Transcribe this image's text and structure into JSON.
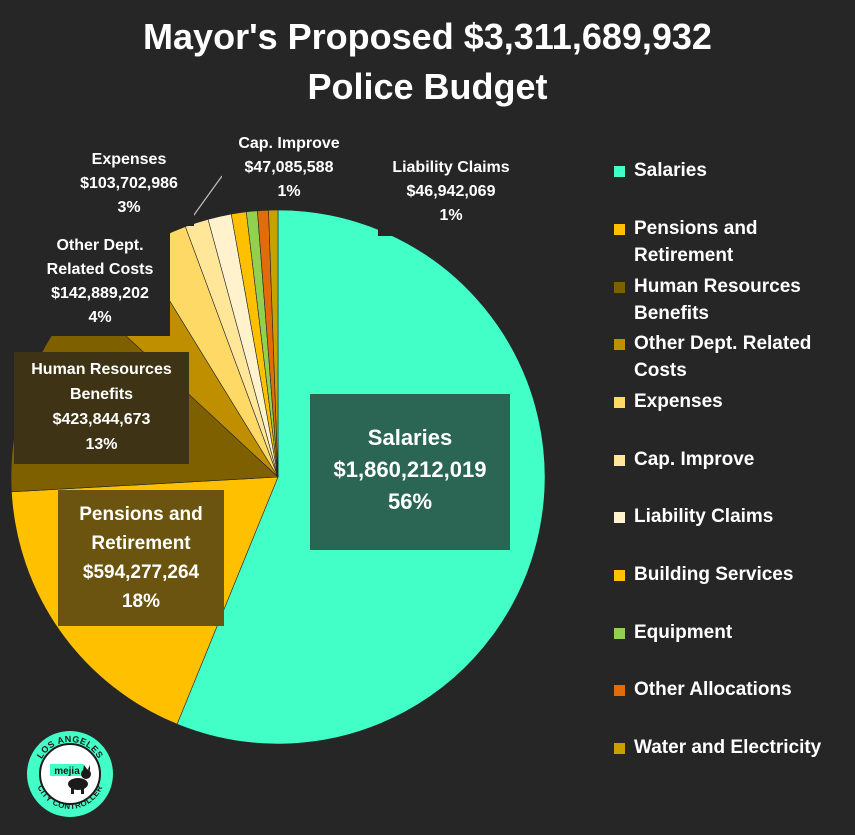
{
  "title": {
    "line1": "Mayor's Proposed $3,311,689,932",
    "line2": "Police Budget"
  },
  "chart_data": {
    "type": "pie",
    "total": 3311689932,
    "slices": [
      {
        "name": "Salaries",
        "value": 1860212019,
        "percent": "56%",
        "color": "#42FFC8"
      },
      {
        "name": "Pensions and Retirement",
        "value": 594277264,
        "percent": "18%",
        "color": "#FFC000"
      },
      {
        "name": "Human Resources Benefits",
        "value": 423844673,
        "percent": "13%",
        "color": "#7F6000"
      },
      {
        "name": "Other Dept. Related Costs",
        "value": 142889202,
        "percent": "4%",
        "color": "#BF8F00"
      },
      {
        "name": "Expenses",
        "value": 103702986,
        "percent": "3%",
        "color": "#FFD966"
      },
      {
        "name": "Cap. Improve",
        "value": 47085588,
        "percent": "1%",
        "color": "#FFE699"
      },
      {
        "name": "Liability Claims",
        "value": 46942069,
        "percent": "1%",
        "color": "#FFF2CC"
      },
      {
        "name": "Building Services",
        "value": 30000000,
        "percent": "",
        "color": "#FFC000"
      },
      {
        "name": "Equipment",
        "value": 22000000,
        "percent": "",
        "color": "#92D050"
      },
      {
        "name": "Other Allocations",
        "value": 22000000,
        "percent": "",
        "color": "#E26B0A"
      },
      {
        "name": "Water and Electricity",
        "value": 18736131,
        "percent": "",
        "color": "#C9A000"
      }
    ]
  },
  "labels": {
    "salaries": {
      "name": "Salaries",
      "value": "$1,860,212,019",
      "percent": "56%"
    },
    "pensions": {
      "name1": "Pensions and",
      "name2": "Retirement",
      "value": "$594,277,264",
      "percent": "18%"
    },
    "hr": {
      "name1": "Human Resources",
      "name2": "Benefits",
      "value": "$423,844,673",
      "percent": "13%"
    },
    "other_dept": {
      "name1": "Other Dept.",
      "name2": "Related Costs",
      "value": "$142,889,202",
      "percent": "4%"
    },
    "expenses": {
      "name": "Expenses",
      "value": "$103,702,986",
      "percent": "3%"
    },
    "cap_improve": {
      "name": "Cap. Improve",
      "value": "$47,085,588",
      "percent": "1%"
    },
    "liability": {
      "name": "Liability Claims",
      "value": "$46,942,069",
      "percent": "1%"
    }
  },
  "legend": [
    {
      "label": "Salaries",
      "color": "#42FFC8"
    },
    {
      "label": "Pensions and Retirement",
      "color": "#FFC000"
    },
    {
      "label": "Human Resources Benefits",
      "color": "#7F6000"
    },
    {
      "label": "Other Dept. Related Costs",
      "color": "#BF8F00"
    },
    {
      "label": "Expenses",
      "color": "#FFD966"
    },
    {
      "label": "Cap. Improve",
      "color": "#FFE699"
    },
    {
      "label": "Liability Claims",
      "color": "#FFF2CC"
    },
    {
      "label": "Building Services",
      "color": "#FFC000"
    },
    {
      "label": "Equipment",
      "color": "#92D050"
    },
    {
      "label": "Other Allocations",
      "color": "#E26B0A"
    },
    {
      "label": "Water and Electricity",
      "color": "#C9A000"
    }
  ],
  "logo": {
    "top_text": "LOS ANGELES",
    "bottom_text": "CITY CONTROLLER",
    "name": "mejia",
    "icon": "controller-seal-icon"
  }
}
